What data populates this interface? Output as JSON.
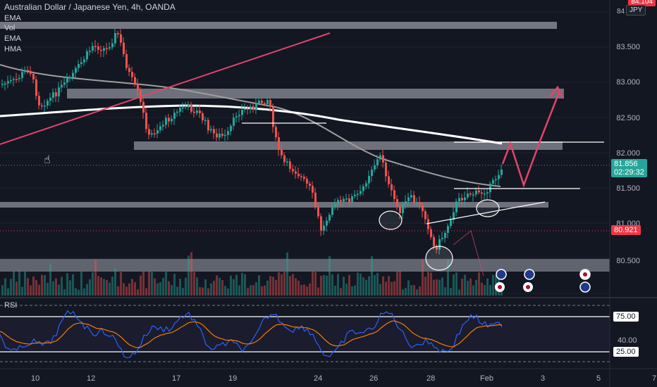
{
  "header": {
    "symbol_title": "Australian Dollar / Japanese Yen, 4h, OANDA"
  },
  "indicators": [
    "EMA",
    "Vol",
    "EMA",
    "HMA"
  ],
  "price_axis": {
    "currency": "JPY",
    "top_partial": "84.104",
    "ticks": [
      "83.500",
      "83.000",
      "82.500",
      "82.000",
      "81.500",
      "81.000",
      "80.500"
    ]
  },
  "current_price": {
    "value": "81.856",
    "countdown": "02:29:32",
    "color": "#26a69a"
  },
  "marker_price": {
    "value": "80.921",
    "color": "#f23645"
  },
  "rsi": {
    "label": "RSI",
    "levels": [
      "75.00",
      "40.00",
      "25.00"
    ]
  },
  "date_axis": {
    "labels": [
      "10",
      "12",
      "17",
      "19",
      "24",
      "26",
      "28",
      "Feb",
      "3",
      "5",
      "7"
    ]
  },
  "colors": {
    "up": "#26a69a",
    "down": "#ef5350",
    "zone": "#8a8d96",
    "trend": "#e0456a",
    "rsi": "#2962ff",
    "rsi_ma": "#f57c00"
  },
  "icons": {
    "cursor": "hand-pointer-icon",
    "events": [
      "au-flag-icon",
      "jp-flag-icon",
      "us-flag-icon"
    ]
  }
}
